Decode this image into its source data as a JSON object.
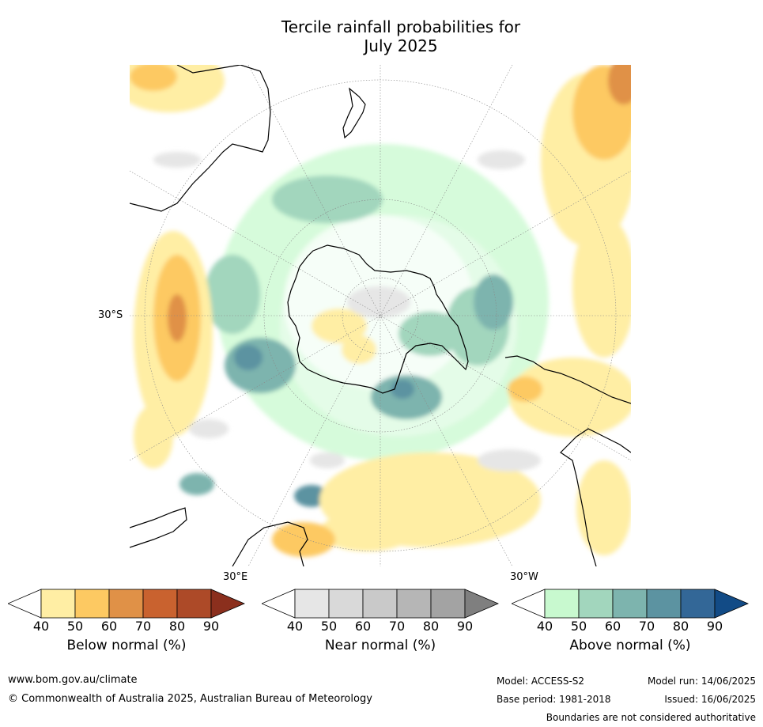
{
  "title": {
    "line1": "Tercile rainfall probabilities for",
    "line2": "July 2025"
  },
  "map": {
    "projection": "south-polar-stereographic",
    "lat_label": "30°S",
    "lon_labels": {
      "east": "30°E",
      "west": "30°W"
    }
  },
  "colorbars": [
    {
      "name": "below",
      "title": "Below normal (%)",
      "ticks": [
        "40",
        "50",
        "60",
        "70",
        "80",
        "90"
      ],
      "colors": [
        "#ffeea4",
        "#fdc962",
        "#e09147",
        "#c9622f",
        "#ad4a28",
        "#8b2f1d"
      ]
    },
    {
      "name": "near",
      "title": "Near normal (%)",
      "ticks": [
        "40",
        "50",
        "60",
        "70",
        "80",
        "90"
      ],
      "colors": [
        "#e6e6e6",
        "#d9d9d9",
        "#c9c9c9",
        "#b6b6b6",
        "#a3a3a3",
        "#7f7f7f"
      ]
    },
    {
      "name": "above",
      "title": "Above normal (%)",
      "ticks": [
        "40",
        "50",
        "60",
        "70",
        "80",
        "90"
      ],
      "colors": [
        "#c8f9cf",
        "#a2d6bd",
        "#7db4ae",
        "#5c93a1",
        "#336797",
        "#124b86"
      ]
    }
  ],
  "footer": {
    "website": "www.bom.gov.au/climate",
    "copyright": "© Commonwealth of Australia 2025, Australian Bureau of Meteorology",
    "model": "Model: ACCESS-S2",
    "base_period": "Base period: 1981-2018",
    "model_run": "Model run: 14/06/2025",
    "issued": "Issued: 16/06/2025",
    "disclaimer": "Boundaries are not considered authoritative"
  }
}
